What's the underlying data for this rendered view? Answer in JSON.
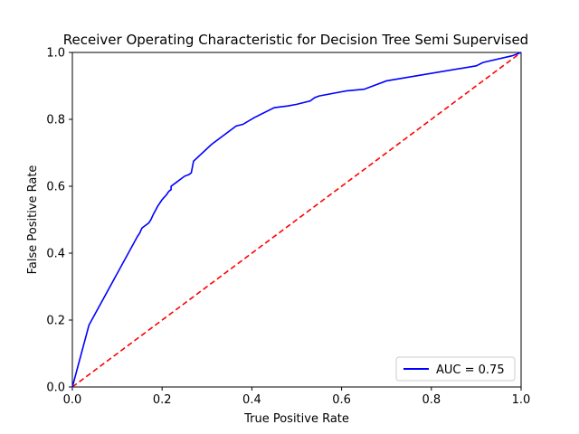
{
  "chart_data": {
    "type": "line",
    "title": "Receiver Operating Characteristic for Decision Tree Semi Supervised",
    "xlabel": "True Positive Rate",
    "ylabel": "False Positive Rate",
    "xlim": [
      0,
      1
    ],
    "ylim": [
      0,
      1
    ],
    "xticks": [
      "0.0",
      "0.2",
      "0.4",
      "0.6",
      "0.8",
      "1.0"
    ],
    "yticks": [
      "0.0",
      "0.2",
      "0.4",
      "0.6",
      "0.8",
      "1.0"
    ],
    "grid": false,
    "legend_position": "lower-right",
    "series": [
      {
        "name": "AUC = 0.75",
        "color": "#0000ff",
        "style": "solid",
        "x": [
          0.0,
          0.037,
          0.145,
          0.15,
          0.155,
          0.16,
          0.17,
          0.175,
          0.18,
          0.19,
          0.2,
          0.21,
          0.215,
          0.22,
          0.22,
          0.23,
          0.25,
          0.26,
          0.265,
          0.27,
          0.31,
          0.365,
          0.38,
          0.405,
          0.45,
          0.48,
          0.5,
          0.53,
          0.54,
          0.55,
          0.61,
          0.65,
          0.7,
          0.9,
          0.915,
          0.98,
          1.0
        ],
        "y": [
          0.0,
          0.185,
          0.45,
          0.46,
          0.475,
          0.48,
          0.49,
          0.5,
          0.515,
          0.54,
          0.56,
          0.575,
          0.585,
          0.59,
          0.6,
          0.61,
          0.63,
          0.635,
          0.64,
          0.675,
          0.725,
          0.78,
          0.785,
          0.805,
          0.835,
          0.84,
          0.845,
          0.855,
          0.865,
          0.87,
          0.885,
          0.89,
          0.915,
          0.96,
          0.97,
          0.99,
          1.0
        ]
      },
      {
        "name": "",
        "color": "#ff0000",
        "style": "dashed",
        "x": [
          0,
          1
        ],
        "y": [
          0,
          1
        ]
      }
    ]
  }
}
